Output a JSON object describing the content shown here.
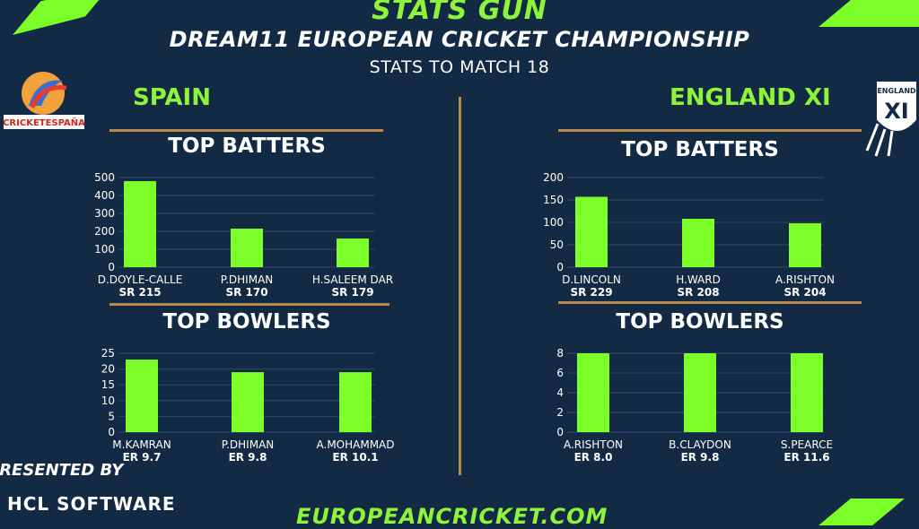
{
  "header": {
    "brand": "STATS GUN",
    "title": "DREAM11 EUROPEAN CRICKET CHAMPIONSHIP",
    "subtitle": "STATS TO MATCH 18"
  },
  "teams": {
    "left": "SPAIN",
    "right": "ENGLAND XI"
  },
  "logos": {
    "spain_text": "CRICKETESPAÑA",
    "england_text": "ENGLAND XI"
  },
  "sponsor": {
    "presented_by": "PRESENTED BY",
    "company": "HCL SOFTWARE"
  },
  "footer": {
    "website": "EUROPEANCRICKET.COM"
  },
  "colors": {
    "background": "#132a44",
    "bar": "#7dff2a",
    "accent": "#8ef43a",
    "divider": "#b98a4b"
  },
  "chart_data": [
    {
      "type": "bar",
      "title": "TOP BATTERS",
      "team": "SPAIN",
      "categories": [
        "D.DOYLE-CALLE",
        "P.DHIMAN",
        "H.SALEEM DAR"
      ],
      "sublabels": [
        "SR 215",
        "SR 170",
        "SR 179"
      ],
      "values": [
        480,
        215,
        160
      ],
      "ylim": [
        0,
        500
      ],
      "yticks": [
        0,
        100,
        200,
        300,
        400,
        500
      ],
      "grid": true
    },
    {
      "type": "bar",
      "title": "TOP BOWLERS",
      "team": "SPAIN",
      "categories": [
        "M.KAMRAN",
        "P.DHIMAN",
        "A.MOHAMMAD"
      ],
      "sublabels": [
        "ER 9.7",
        "ER 9.8",
        "ER 10.1"
      ],
      "values": [
        23,
        19,
        19
      ],
      "ylim": [
        0,
        25
      ],
      "yticks": [
        0,
        5,
        10,
        15,
        20,
        25
      ],
      "grid": true
    },
    {
      "type": "bar",
      "title": "TOP BATTERS",
      "team": "ENGLAND XI",
      "categories": [
        "D.LINCOLN",
        "H.WARD",
        "A.RISHTON"
      ],
      "sublabels": [
        "SR 229",
        "SR 208",
        "SR 204"
      ],
      "values": [
        157,
        108,
        98
      ],
      "ylim": [
        0,
        200
      ],
      "yticks": [
        0,
        50,
        100,
        150,
        200
      ],
      "grid": true
    },
    {
      "type": "bar",
      "title": "TOP BOWLERS",
      "team": "ENGLAND XI",
      "categories": [
        "A.RISHTON",
        "B.CLAYDON",
        "S.PEARCE"
      ],
      "sublabels": [
        "ER 8.0",
        "ER 9.8",
        "ER 11.6"
      ],
      "values": [
        8,
        8,
        8
      ],
      "ylim": [
        0,
        8
      ],
      "yticks": [
        0,
        2,
        4,
        6,
        8
      ],
      "grid": true
    }
  ]
}
